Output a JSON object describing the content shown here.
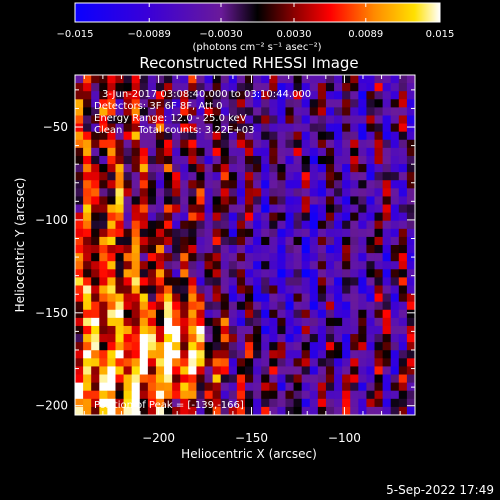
{
  "chart_data": {
    "type": "heatmap",
    "title": "Reconstructed RHESSI Image",
    "xlabel": "Heliocentric X (arcsec)",
    "ylabel": "Heliocentric Y (arcsec)",
    "xlim": [
      -245,
      -62
    ],
    "ylim": [
      -205,
      -22
    ],
    "x_ticks": [
      -200,
      -150,
      -100
    ],
    "x_tick_labels": [
      "−200",
      "−150",
      "−100"
    ],
    "y_ticks": [
      -50,
      -100,
      -150,
      -200
    ],
    "y_tick_labels": [
      "−50",
      "−100",
      "−150",
      "−200"
    ],
    "colorbar": {
      "vmin": -0.015,
      "vmax": 0.015,
      "ticks": [
        -0.015,
        -0.0089,
        -0.003,
        0.003,
        0.0089,
        0.015
      ],
      "tick_labels": [
        "−0.015",
        "−0.0089",
        "−0.0030",
        "0.0030",
        "0.0089",
        "0.015"
      ],
      "unit_label": "(photons cm⁻² s⁻¹ asec⁻²)"
    },
    "colors": [
      "#0000ff",
      "#4b0082",
      "#000000",
      "#ff0000",
      "#ffa500",
      "#ffff00",
      "#ffffff"
    ],
    "annotations": [
      "3-Jun-2017 03:08:40.000 to 03:10:44.000",
      "Detectors: 3F 6F 8F, Att 0",
      "Energy Range: 12.0 - 25.0 keV",
      "Clean     Total counts: 3.22E+03"
    ],
    "peak_label": "Position of Peak = [-139,-166]",
    "peak": [
      -139,
      -166
    ]
  },
  "footer": {
    "date": "5-Sep-2022 17:49"
  }
}
